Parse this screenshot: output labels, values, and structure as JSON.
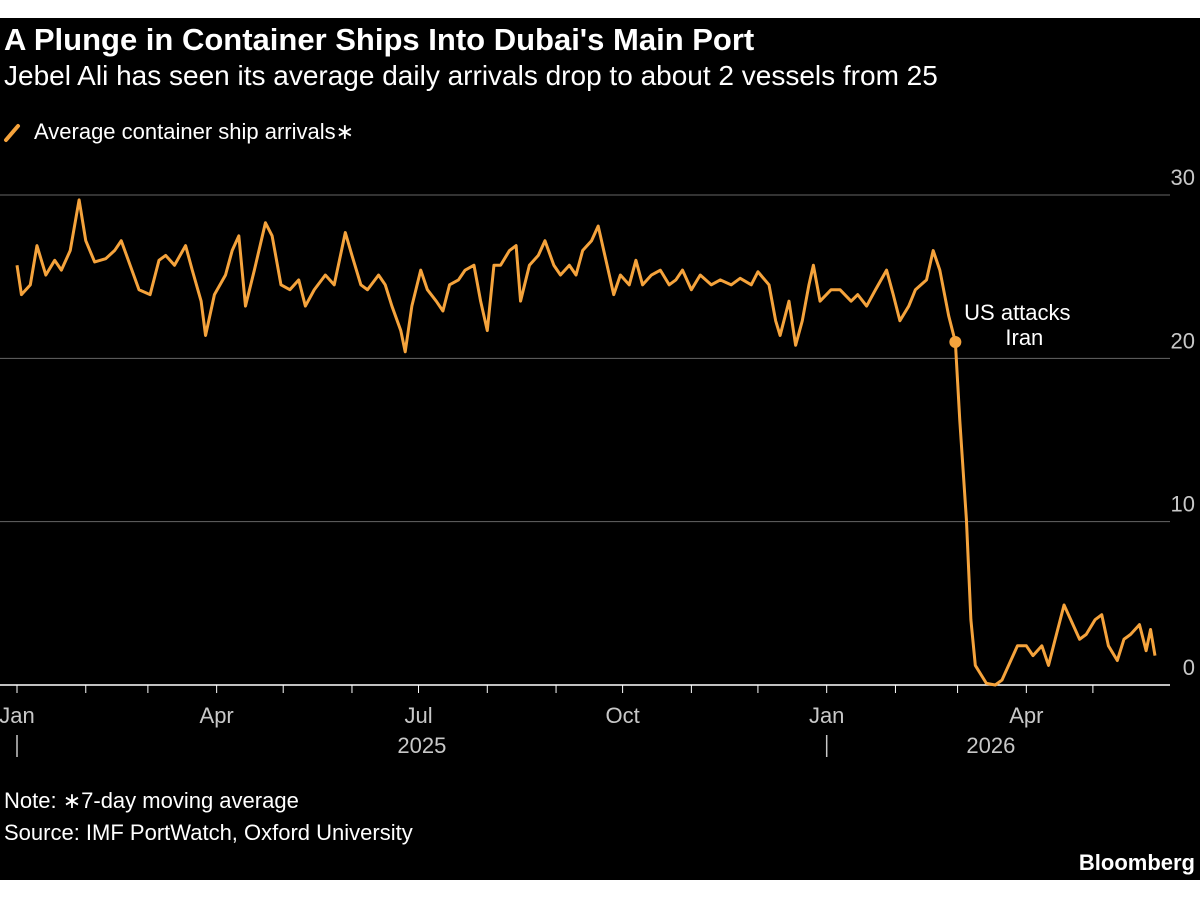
{
  "chart_data": {
    "type": "line",
    "title": "A Plunge in Container Ships Into Dubai's Main Port",
    "subtitle": "Jebel Ali has seen its average daily arrivals drop to about 2 vessels from 25",
    "note": "Note: ∗7-day moving average",
    "source": "Source: IMF PortWatch, Oxford University",
    "brand": "Bloomberg",
    "x": [
      "2025-01-01",
      "2025-01-03",
      "2025-01-07",
      "2025-01-10",
      "2025-01-14",
      "2025-01-18",
      "2025-01-21",
      "2025-01-25",
      "2025-01-29",
      "2025-02-01",
      "2025-02-05",
      "2025-02-10",
      "2025-02-14",
      "2025-02-17",
      "2025-02-21",
      "2025-02-25",
      "2025-03-02",
      "2025-03-06",
      "2025-03-09",
      "2025-03-13",
      "2025-03-18",
      "2025-03-21",
      "2025-03-25",
      "2025-03-27",
      "2025-03-31",
      "2025-04-05",
      "2025-04-08",
      "2025-04-11",
      "2025-04-14",
      "2025-04-18",
      "2025-04-23",
      "2025-04-26",
      "2025-04-30",
      "2025-05-04",
      "2025-05-08",
      "2025-05-11",
      "2025-05-15",
      "2025-05-20",
      "2025-05-24",
      "2025-05-29",
      "2025-06-01",
      "2025-06-05",
      "2025-06-08",
      "2025-06-13",
      "2025-06-16",
      "2025-06-19",
      "2025-06-23",
      "2025-06-25",
      "2025-06-28",
      "2025-07-02",
      "2025-07-05",
      "2025-07-09",
      "2025-07-12",
      "2025-07-15",
      "2025-07-19",
      "2025-07-22",
      "2025-07-26",
      "2025-07-29",
      "2025-08-01",
      "2025-08-04",
      "2025-08-07",
      "2025-08-11",
      "2025-08-14",
      "2025-08-16",
      "2025-08-20",
      "2025-08-24",
      "2025-08-27",
      "2025-08-31",
      "2025-09-03",
      "2025-09-07",
      "2025-09-10",
      "2025-09-13",
      "2025-09-17",
      "2025-09-20",
      "2025-09-23",
      "2025-09-27",
      "2025-09-30",
      "2025-10-04",
      "2025-10-07",
      "2025-10-10",
      "2025-10-14",
      "2025-10-18",
      "2025-10-22",
      "2025-10-25",
      "2025-10-28",
      "2025-11-01",
      "2025-11-05",
      "2025-11-10",
      "2025-11-14",
      "2025-11-19",
      "2025-11-23",
      "2025-11-28",
      "2025-12-01",
      "2025-12-06",
      "2025-12-09",
      "2025-12-11",
      "2025-12-15",
      "2025-12-18",
      "2025-12-21",
      "2025-12-24",
      "2025-12-26",
      "2025-12-29",
      "2026-01-03",
      "2026-01-07",
      "2026-01-12",
      "2026-01-15",
      "2026-01-19",
      "2026-01-23",
      "2026-01-28",
      "2026-01-31",
      "2026-02-03",
      "2026-02-07",
      "2026-02-10",
      "2026-02-15",
      "2026-02-18",
      "2026-02-21",
      "2026-02-25",
      "2026-02-28",
      "2026-03-02",
      "2026-03-05",
      "2026-03-07",
      "2026-03-09",
      "2026-03-14",
      "2026-03-18",
      "2026-03-21",
      "2026-03-25",
      "2026-03-28",
      "2026-04-01",
      "2026-04-04",
      "2026-04-08",
      "2026-04-11",
      "2026-04-14",
      "2026-04-18",
      "2026-04-21",
      "2026-04-25",
      "2026-04-28",
      "2026-05-02",
      "2026-05-05",
      "2026-05-08",
      "2026-05-12",
      "2026-05-15",
      "2026-05-18",
      "2026-05-22",
      "2026-05-25",
      "2026-05-27",
      "2026-05-29"
    ],
    "series": [
      {
        "name": "Average container ship arrivals∗",
        "color": "#f5a33c",
        "values": [
          25.7,
          23.9,
          24.5,
          26.9,
          25.1,
          26.0,
          25.4,
          26.6,
          29.7,
          27.2,
          25.9,
          26.1,
          26.6,
          27.2,
          25.7,
          24.2,
          23.9,
          26.0,
          26.3,
          25.7,
          26.9,
          25.4,
          23.5,
          21.4,
          23.9,
          25.1,
          26.6,
          27.5,
          23.2,
          25.4,
          28.3,
          27.5,
          24.5,
          24.2,
          24.8,
          23.2,
          24.2,
          25.1,
          24.5,
          27.7,
          26.3,
          24.5,
          24.2,
          25.1,
          24.5,
          23.2,
          21.7,
          20.4,
          23.2,
          25.4,
          24.2,
          23.5,
          22.9,
          24.5,
          24.8,
          25.4,
          25.7,
          23.5,
          21.7,
          25.7,
          25.7,
          26.6,
          26.9,
          23.5,
          25.7,
          26.3,
          27.2,
          25.7,
          25.1,
          25.7,
          25.1,
          26.6,
          27.2,
          28.1,
          26.3,
          23.9,
          25.1,
          24.5,
          26.0,
          24.5,
          25.1,
          25.4,
          24.5,
          24.8,
          25.4,
          24.2,
          25.1,
          24.5,
          24.8,
          24.5,
          24.9,
          24.5,
          25.3,
          24.5,
          22.3,
          21.4,
          23.5,
          20.8,
          22.3,
          24.5,
          25.7,
          23.5,
          24.2,
          24.2,
          23.5,
          23.9,
          23.2,
          24.2,
          25.4,
          23.9,
          22.3,
          23.2,
          24.2,
          24.8,
          26.6,
          25.4,
          22.6,
          21.0,
          16.2,
          10.1,
          4.0,
          1.2,
          0.1,
          0.0,
          0.3,
          1.5,
          2.4,
          2.4,
          1.8,
          2.4,
          1.2,
          2.8,
          4.9,
          4.0,
          2.8,
          3.1,
          4.0,
          4.3,
          2.4,
          1.5,
          2.8,
          3.1,
          3.7,
          2.1,
          3.4,
          1.8
        ]
      }
    ],
    "annotation": {
      "text": [
        "US attacks",
        "Iran"
      ],
      "x": "2026-02-28",
      "y": 21.0
    },
    "xlim": [
      "2025-01-01",
      "2026-05-29"
    ],
    "xticks": [
      {
        "value": "2025-01-01",
        "label": "Jan"
      },
      {
        "value": "2025-04-01",
        "label": "Apr"
      },
      {
        "value": "2025-07-01",
        "label": "Jul"
      },
      {
        "value": "2025-10-01",
        "label": "Oct"
      },
      {
        "value": "2026-01-01",
        "label": "Jan"
      },
      {
        "value": "2026-04-01",
        "label": "Apr"
      }
    ],
    "xminorticks": [
      "2025-02-01",
      "2025-03-01",
      "2025-05-01",
      "2025-06-01",
      "2025-08-01",
      "2025-09-01",
      "2025-11-01",
      "2025-12-01",
      "2026-02-01",
      "2026-03-01",
      "2026-05-01"
    ],
    "xgroups": [
      {
        "label": "2025",
        "start": "2025-01-01"
      },
      {
        "label": "2026",
        "start": "2026-01-01"
      }
    ],
    "ylim": [
      0,
      30
    ],
    "yticks": [
      0,
      10,
      20,
      30
    ],
    "grid": true,
    "legend": "top-left"
  }
}
